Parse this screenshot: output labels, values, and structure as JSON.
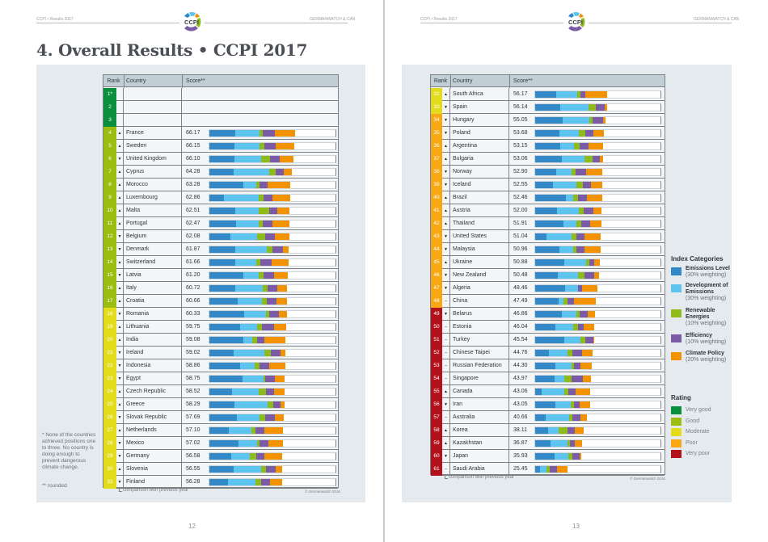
{
  "header": {
    "left_text": "CCPI • Results 2017",
    "right_text": "GERMANWATCH & CAN",
    "logo_text": "CCPI"
  },
  "title": "4. Overall Results • CCPI 2017",
  "columns": {
    "rank": "Rank",
    "country": "Country",
    "score": "Score**"
  },
  "comparison_note": "comparison with previous year",
  "copyright": "© Germanwatch 2016",
  "footnotes": {
    "star": "* None of the countries achieved positions one to three. No country is doing enough to prevent dangerous climate change.",
    "double_star": "** rounded"
  },
  "page_numbers": {
    "left": "12",
    "right": "13"
  },
  "category_colors": [
    "#3389c8",
    "#5cc4ef",
    "#8cbb1a",
    "#7b5aa6",
    "#f39200"
  ],
  "rating_colors": {
    "very_good": "#0b8f3c",
    "good": "#9bbd10",
    "moderate": "#e2dc1c",
    "poor": "#f7a814",
    "very_poor": "#b3121c"
  },
  "legend": {
    "categories_title": "Index Categories",
    "categories": [
      {
        "name": "Emissions Level",
        "weight": "(30% weighting)"
      },
      {
        "name": "Development of Emissions",
        "weight": "(30% weighting)"
      },
      {
        "name": "Renewable Energies",
        "weight": "(10% weighting)"
      },
      {
        "name": "Efficiency",
        "weight": "(10% weighting)"
      },
      {
        "name": "Climate Policy",
        "weight": "(20% weighting)"
      }
    ],
    "rating_title": "Rating",
    "ratings": [
      {
        "key": "very_good",
        "label": "Very good"
      },
      {
        "key": "good",
        "label": "Good"
      },
      {
        "key": "moderate",
        "label": "Moderate"
      },
      {
        "key": "poor",
        "label": "Poor"
      },
      {
        "key": "very_poor",
        "label": "Very poor"
      }
    ]
  },
  "empty_ranks": [
    {
      "rank": "1*",
      "rating": "very_good"
    },
    {
      "rank": "2",
      "rating": "very_good"
    },
    {
      "rank": "3",
      "rating": "very_good"
    }
  ],
  "rows_left": [
    {
      "rank": "4",
      "trend": "up",
      "country": "France",
      "score": "66.17",
      "rating": "good",
      "segments": [
        20,
        19,
        3,
        9,
        16
      ]
    },
    {
      "rank": "5",
      "trend": "up",
      "country": "Sweden",
      "score": "66.15",
      "rating": "good",
      "segments": [
        19.6,
        19.8,
        3.7,
        9.1,
        14.1
      ]
    },
    {
      "rank": "6",
      "trend": "down",
      "country": "United Kingdom",
      "score": "66.10",
      "rating": "good",
      "segments": [
        19.6,
        21.1,
        6.7,
        7.4,
        11.3
      ]
    },
    {
      "rank": "7",
      "trend": "up",
      "country": "Cyprus",
      "score": "64.28",
      "rating": "good",
      "segments": [
        18.9,
        27.8,
        5,
        6.5,
        6.5
      ]
    },
    {
      "rank": "8",
      "trend": "up",
      "country": "Morocco",
      "score": "63.28",
      "rating": "good",
      "segments": [
        26.5,
        10.4,
        2.6,
        6.1,
        17.8
      ]
    },
    {
      "rank": "9",
      "trend": "up",
      "country": "Luxembourg",
      "score": "62.86",
      "rating": "good",
      "segments": [
        11.3,
        27.6,
        3.3,
        7,
        13.9
      ]
    },
    {
      "rank": "10",
      "trend": "up",
      "country": "Malta",
      "score": "62.51",
      "rating": "good",
      "segments": [
        20.2,
        18.3,
        8.3,
        6.1,
        10
      ]
    },
    {
      "rank": "11",
      "trend": "up",
      "country": "Portugal",
      "score": "62.47",
      "rating": "good",
      "segments": [
        20.7,
        17.8,
        3.3,
        7.8,
        13.3
      ]
    },
    {
      "rank": "12",
      "trend": "down",
      "country": "Belgium",
      "score": "62.08",
      "rating": "good",
      "segments": [
        16.3,
        21.1,
        6.3,
        7.4,
        11.3
      ]
    },
    {
      "rank": "13",
      "trend": "down",
      "country": "Denmark",
      "score": "61.87",
      "rating": "good",
      "segments": [
        20,
        24.8,
        4.8,
        8,
        4.6
      ]
    },
    {
      "rank": "14",
      "trend": "up",
      "country": "Switzerland",
      "score": "61.66",
      "rating": "good",
      "segments": [
        20,
        16.5,
        3.3,
        9.1,
        13
      ]
    },
    {
      "rank": "15",
      "trend": "down",
      "country": "Latvia",
      "score": "61.20",
      "rating": "good",
      "segments": [
        26.3,
        12.6,
        3.7,
        8,
        10.9
      ]
    },
    {
      "rank": "16",
      "trend": "up",
      "country": "Italy",
      "score": "60.72",
      "rating": "good",
      "segments": [
        20.4,
        21.3,
        4.1,
        7.6,
        7.6
      ]
    },
    {
      "rank": "17",
      "trend": "up",
      "country": "Croatia",
      "score": "60.66",
      "rating": "good",
      "segments": [
        22.2,
        19.1,
        3.5,
        7.6,
        8.7
      ]
    },
    {
      "rank": "18",
      "trend": "down",
      "country": "Romania",
      "score": "60.33",
      "rating": "moderate",
      "segments": [
        27,
        17,
        2.8,
        7.6,
        6.5
      ]
    },
    {
      "rank": "19",
      "trend": "up",
      "country": "Lithuania",
      "score": "59.75",
      "rating": "moderate",
      "segments": [
        24.1,
        13.3,
        3.9,
        9.1,
        9.8
      ]
    },
    {
      "rank": "20",
      "trend": "up",
      "country": "India",
      "score": "59.08",
      "rating": "moderate",
      "segments": [
        26.3,
        7.4,
        3.5,
        5.9,
        16.5
      ]
    },
    {
      "rank": "21",
      "trend": "down",
      "country": "Ireland",
      "score": "59.02",
      "rating": "moderate",
      "segments": [
        19.1,
        24.1,
        5.2,
        7.2,
        3.9
      ]
    },
    {
      "rank": "22",
      "trend": "down",
      "country": "Indonesia",
      "score": "58.86",
      "rating": "moderate",
      "segments": [
        24.3,
        11.1,
        3.9,
        7.8,
        12.2
      ]
    },
    {
      "rank": "23",
      "trend": "down",
      "country": "Egypt",
      "score": "58.75",
      "rating": "moderate",
      "segments": [
        25.7,
        16.5,
        1.7,
        7.2,
        8
      ]
    },
    {
      "rank": "24",
      "trend": "up",
      "country": "Czech Republic",
      "score": "58.52",
      "rating": "moderate",
      "segments": [
        17.8,
        21.1,
        5.4,
        6.1,
        8.5
      ]
    },
    {
      "rank": "25",
      "trend": "up",
      "country": "Greece",
      "score": "58.29",
      "rating": "moderate",
      "segments": [
        19.6,
        26.1,
        4.3,
        5.7,
        3
      ]
    },
    {
      "rank": "26",
      "trend": "down",
      "country": "Slovak Republic",
      "score": "57.69",
      "rating": "moderate",
      "segments": [
        21.3,
        18,
        4.3,
        7.4,
        7
      ]
    },
    {
      "rank": "27",
      "trend": "up",
      "country": "Netherlands",
      "score": "57.10",
      "rating": "moderate",
      "segments": [
        15.2,
        18,
        2.8,
        7.2,
        14.3
      ]
    },
    {
      "rank": "28",
      "trend": "down",
      "country": "Mexico",
      "score": "57.02",
      "rating": "moderate",
      "segments": [
        22.8,
        14.6,
        2,
        6.5,
        11.7
      ]
    },
    {
      "rank": "29",
      "trend": "down",
      "country": "Germany",
      "score": "56.58",
      "rating": "moderate",
      "segments": [
        17,
        14.6,
        4.8,
        6.5,
        14.1
      ]
    },
    {
      "rank": "30",
      "trend": "up",
      "country": "Slovenia",
      "score": "56.55",
      "rating": "moderate",
      "segments": [
        19.3,
        20.9,
        4.1,
        7.4,
        5.2
      ]
    },
    {
      "rank": "31",
      "trend": "down",
      "country": "Finland",
      "score": "56.28",
      "rating": "moderate",
      "segments": [
        14.6,
        21.7,
        4.1,
        7.2,
        9.1
      ]
    }
  ],
  "rows_right": [
    {
      "rank": "32",
      "trend": "up",
      "country": "South Africa",
      "score": "56.17",
      "rating": "moderate",
      "segments": [
        16.7,
        16.7,
        2,
        3.9,
        17.2
      ]
    },
    {
      "rank": "33",
      "trend": "down",
      "country": "Spain",
      "score": "56.14",
      "rating": "moderate",
      "segments": [
        19.8,
        22.2,
        5.9,
        7.2,
        1.5
      ]
    },
    {
      "rank": "34",
      "trend": "down",
      "country": "Hungary",
      "score": "55.05",
      "rating": "poor",
      "segments": [
        21.7,
        20.9,
        2.6,
        8,
        2
      ]
    },
    {
      "rank": "35",
      "trend": "down",
      "country": "Poland",
      "score": "53.68",
      "rating": "poor",
      "segments": [
        19.1,
        15,
        5.7,
        5.9,
        8.5
      ]
    },
    {
      "rank": "36",
      "trend": "up",
      "country": "Argentina",
      "score": "53.15",
      "rating": "poor",
      "segments": [
        19.8,
        10.9,
        4.1,
        7.2,
        11.3
      ]
    },
    {
      "rank": "37",
      "trend": "up",
      "country": "Bulgaria",
      "score": "53.06",
      "rating": "poor",
      "segments": [
        21.1,
        17.6,
        6.5,
        5.9,
        2.2
      ]
    },
    {
      "rank": "38",
      "trend": "down",
      "country": "Norway",
      "score": "52.90",
      "rating": "poor",
      "segments": [
        16.7,
        11.7,
        3.7,
        8.3,
        12.6
      ]
    },
    {
      "rank": "39",
      "trend": "down",
      "country": "Iceland",
      "score": "52.55",
      "rating": "poor",
      "segments": [
        13.9,
        18.7,
        4.8,
        6.3,
        9.1
      ]
    },
    {
      "rank": "40",
      "trend": "up",
      "country": "Brazil",
      "score": "52.46",
      "rating": "poor",
      "segments": [
        24.1,
        6.1,
        3.7,
        6.7,
        12.2
      ]
    },
    {
      "rank": "41",
      "trend": "up",
      "country": "Austria",
      "score": "52.00",
      "rating": "poor",
      "segments": [
        17.2,
        17.4,
        3.7,
        7.8,
        6.3
      ]
    },
    {
      "rank": "42",
      "trend": "up",
      "country": "Thailand",
      "score": "51.91",
      "rating": "poor",
      "segments": [
        22.6,
        9.8,
        3.7,
        7.2,
        8.7
      ]
    },
    {
      "rank": "43",
      "trend": "down",
      "country": "United States",
      "score": "51.04",
      "rating": "poor",
      "segments": [
        8.7,
        20.2,
        3.7,
        6.3,
        12.4
      ]
    },
    {
      "rank": "44",
      "trend": "down",
      "country": "Malaysia",
      "score": "50.96",
      "rating": "poor",
      "segments": [
        18.9,
        11.3,
        2.4,
        6.3,
        12.4
      ]
    },
    {
      "rank": "45",
      "trend": "up",
      "country": "Ukraine",
      "score": "50.88",
      "rating": "poor",
      "segments": [
        23,
        17.2,
        2.4,
        3.9,
        4.6
      ]
    },
    {
      "rank": "46",
      "trend": "down",
      "country": "New Zealand",
      "score": "50.48",
      "rating": "poor",
      "segments": [
        17.8,
        16.1,
        5,
        7.8,
        3.9
      ]
    },
    {
      "rank": "47",
      "trend": "down",
      "country": "Algeria",
      "score": "48.46",
      "rating": "poor",
      "segments": [
        23.7,
        9.8,
        0.3,
        3,
        12
      ]
    },
    {
      "rank": "48",
      "trend": "same",
      "country": "China",
      "score": "47.49",
      "rating": "poor",
      "segments": [
        18.7,
        3.3,
        3.5,
        4.8,
        17.6
      ]
    },
    {
      "rank": "49",
      "trend": "down",
      "country": "Belarus",
      "score": "46.86",
      "rating": "very_poor",
      "segments": [
        21.1,
        11.3,
        2.4,
        6.5,
        5.9
      ]
    },
    {
      "rank": "50",
      "trend": "same",
      "country": "Estonia",
      "score": "46.04",
      "rating": "very_poor",
      "segments": [
        16.1,
        13.7,
        4.1,
        4.1,
        8.3
      ]
    },
    {
      "rank": "51",
      "trend": "same",
      "country": "Turkey",
      "score": "45.54",
      "rating": "very_poor",
      "segments": [
        23,
        12.4,
        3.9,
        6.5,
        0.4
      ]
    },
    {
      "rank": "52",
      "trend": "same",
      "country": "Chinese Taipei",
      "score": "44.76",
      "rating": "very_poor",
      "segments": [
        11.1,
        14.6,
        3.9,
        7.2,
        8.3
      ]
    },
    {
      "rank": "53",
      "trend": "same",
      "country": "Russian Federation",
      "score": "44.30",
      "rating": "very_poor",
      "segments": [
        15.9,
        13,
        1.5,
        5,
        9.1
      ]
    },
    {
      "rank": "54",
      "trend": "same",
      "country": "Singapore",
      "score": "43.97",
      "rating": "very_poor",
      "segments": [
        15.4,
        7.8,
        5.7,
        8.5,
        6.5
      ]
    },
    {
      "rank": "55",
      "trend": "up",
      "country": "Canada",
      "score": "43.06",
      "rating": "very_poor",
      "segments": [
        5.4,
        17.8,
        2.8,
        5.7,
        11.5
      ]
    },
    {
      "rank": "56",
      "trend": "down",
      "country": "Iran",
      "score": "43.05",
      "rating": "very_poor",
      "segments": [
        16.1,
        12.2,
        2,
        4.8,
        8.3
      ]
    },
    {
      "rank": "57",
      "trend": "same",
      "country": "Australia",
      "score": "40.66",
      "rating": "very_poor",
      "segments": [
        8.3,
        18.7,
        2.6,
        5.9,
        5.4
      ]
    },
    {
      "rank": "58",
      "trend": "up",
      "country": "Korea",
      "score": "38.11",
      "rating": "very_poor",
      "segments": [
        10,
        8.5,
        7.2,
        5.7,
        7
      ]
    },
    {
      "rank": "59",
      "trend": "up",
      "country": "Kazakhstan",
      "score": "36.87",
      "rating": "very_poor",
      "segments": [
        12.2,
        13.5,
        1.7,
        4.1,
        5.4
      ]
    },
    {
      "rank": "60",
      "trend": "down",
      "country": "Japan",
      "score": "35.93",
      "rating": "very_poor",
      "segments": [
        15.2,
        10.9,
        3.5,
        5.4,
        1.1
      ]
    },
    {
      "rank": "61",
      "trend": "same",
      "country": "Saudi Arabia",
      "score": "25.45",
      "rating": "very_poor",
      "segments": [
        4.1,
        5,
        2.6,
        5.4,
        8.3
      ]
    }
  ]
}
